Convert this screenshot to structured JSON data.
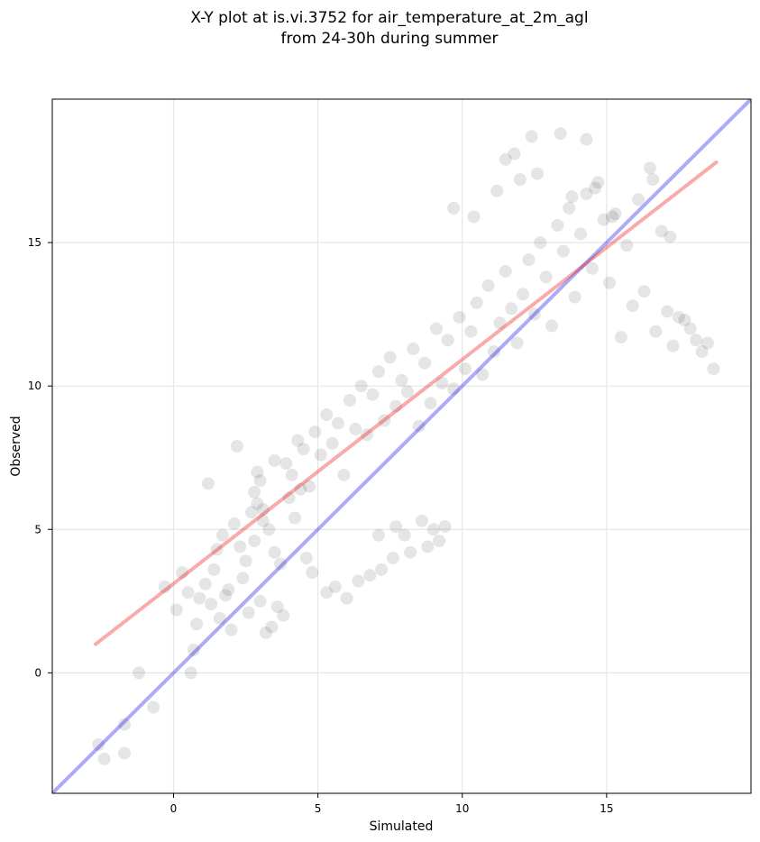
{
  "chart_data": {
    "type": "scatter",
    "title": "X-Y plot at is.vi.3752 for air_temperature_at_2m_agl",
    "subtitle": "from 24-30h during summer",
    "xlabel": "Simulated",
    "ylabel": "Observed",
    "xlim": [
      -4.2,
      20.0
    ],
    "ylim": [
      -4.2,
      20.0
    ],
    "xticks": [
      0,
      5,
      10,
      15
    ],
    "yticks": [
      0,
      5,
      10,
      15
    ],
    "grid": true,
    "colors": {
      "points": "#000000",
      "identity_line": "#0000ee",
      "regression_line": "#ee0000",
      "grid": "#e6e6e6"
    },
    "series": [
      {
        "kind": "scatter",
        "color": "#000000",
        "x": [
          -2.6,
          -2.4,
          -1.7,
          -1.7,
          -1.2,
          -0.7,
          0.6,
          0.7,
          0.8,
          0.1,
          -0.3,
          0.3,
          0.5,
          0.9,
          1.1,
          1.3,
          1.4,
          1.5,
          1.7,
          1.9,
          2.1,
          2.3,
          2.5,
          2.7,
          2.8,
          2.9,
          3.1,
          3.3,
          3.5,
          3.7,
          1.6,
          1.8,
          2.0,
          2.4,
          2.6,
          3.0,
          3.2,
          3.4,
          3.6,
          3.8,
          4.0,
          4.2,
          4.4,
          4.6,
          4.8,
          1.2,
          2.2,
          3.9,
          4.1,
          4.3,
          2.8,
          2.9,
          3.0,
          3.1,
          3.5,
          4.5,
          4.7,
          4.9,
          5.1,
          5.3,
          5.5,
          5.7,
          5.9,
          6.1,
          6.3,
          6.5,
          6.7,
          6.9,
          7.1,
          7.3,
          7.5,
          7.7,
          7.9,
          8.1,
          8.3,
          8.5,
          8.7,
          8.9,
          9.1,
          9.3,
          9.5,
          9.7,
          9.9,
          10.1,
          10.3,
          10.5,
          10.7,
          10.9,
          11.1,
          11.3,
          11.5,
          11.7,
          11.9,
          12.1,
          12.3,
          12.5,
          12.7,
          12.9,
          13.1,
          13.3,
          13.5,
          13.7,
          13.9,
          14.1,
          14.3,
          14.5,
          14.7,
          14.9,
          15.1,
          15.3,
          15.5,
          15.7,
          15.9,
          16.1,
          16.3,
          16.5,
          16.7,
          16.9,
          17.1,
          17.3,
          17.5,
          17.7,
          17.9,
          18.1,
          18.3,
          18.5,
          18.7,
          11.5,
          11.8,
          12.4,
          13.4,
          14.3,
          12.0,
          9.7,
          10.4,
          11.2,
          12.6,
          13.8,
          14.6,
          15.2,
          16.6,
          17.2,
          7.1,
          7.7,
          8.0,
          8.6,
          9.0,
          9.4,
          5.3,
          5.6,
          6.0,
          6.4,
          6.8,
          7.2,
          7.6,
          8.2,
          8.8,
          9.2
        ],
        "y": [
          -2.5,
          -3.0,
          -1.8,
          -2.8,
          0.0,
          -1.2,
          0.0,
          0.8,
          1.7,
          2.2,
          3.0,
          3.5,
          2.8,
          2.6,
          3.1,
          2.4,
          3.6,
          4.3,
          4.8,
          2.9,
          5.2,
          4.4,
          3.9,
          5.6,
          4.6,
          5.9,
          5.3,
          5.0,
          4.2,
          3.8,
          1.9,
          2.7,
          1.5,
          3.3,
          2.1,
          2.5,
          1.4,
          1.6,
          2.3,
          2.0,
          6.1,
          5.4,
          6.4,
          4.0,
          3.5,
          6.6,
          7.9,
          7.3,
          6.9,
          8.1,
          6.3,
          7.0,
          6.7,
          5.7,
          7.4,
          7.8,
          6.5,
          8.4,
          7.6,
          9.0,
          8.0,
          8.7,
          6.9,
          9.5,
          8.5,
          10.0,
          8.3,
          9.7,
          10.5,
          8.8,
          11.0,
          9.3,
          10.2,
          9.8,
          11.3,
          8.6,
          10.8,
          9.4,
          12.0,
          10.1,
          11.6,
          9.9,
          12.4,
          10.6,
          11.9,
          12.9,
          10.4,
          13.5,
          11.2,
          12.2,
          14.0,
          12.7,
          11.5,
          13.2,
          14.4,
          12.5,
          15.0,
          13.8,
          12.1,
          15.6,
          14.7,
          16.2,
          13.1,
          15.3,
          16.7,
          14.1,
          17.1,
          15.8,
          13.6,
          16.0,
          11.7,
          14.9,
          12.8,
          16.5,
          13.3,
          17.6,
          11.9,
          15.4,
          12.6,
          11.4,
          12.4,
          12.3,
          12.0,
          11.6,
          11.2,
          11.5,
          10.6,
          17.9,
          18.1,
          18.7,
          18.8,
          18.6,
          17.2,
          16.2,
          15.9,
          16.8,
          17.4,
          16.6,
          16.9,
          15.9,
          17.2,
          15.2,
          4.8,
          5.1,
          4.8,
          5.3,
          5.0,
          5.1,
          2.8,
          3.0,
          2.6,
          3.2,
          3.4,
          3.6,
          4.0,
          4.2,
          4.4,
          4.6
        ]
      },
      {
        "kind": "line",
        "color": "#0000ee",
        "x": [
          -4.2,
          20.0
        ],
        "y": [
          -4.2,
          20.0
        ]
      },
      {
        "kind": "line",
        "color": "#ee0000",
        "x": [
          -2.7,
          18.8
        ],
        "y": [
          1.0,
          17.8
        ]
      }
    ]
  }
}
